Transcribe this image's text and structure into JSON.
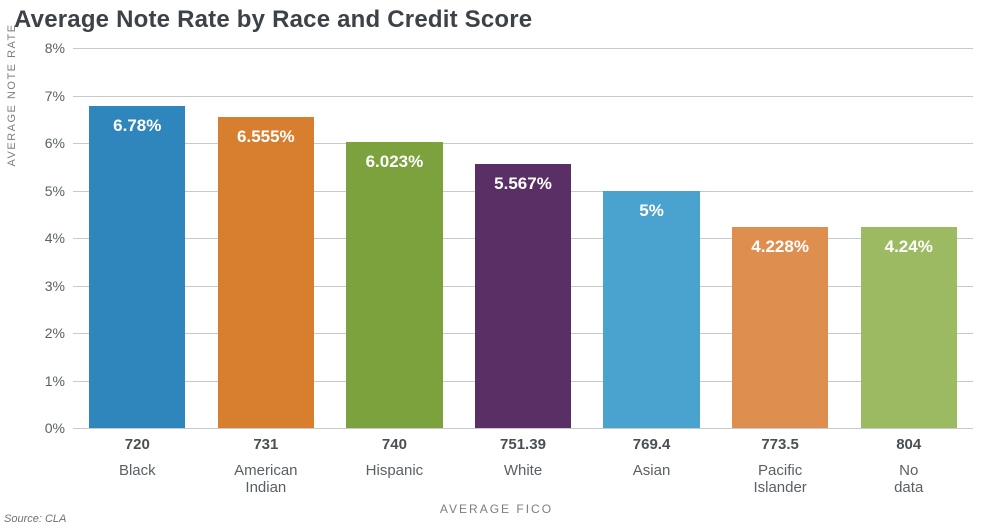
{
  "title": "Average Note Rate by Race and Credit Score",
  "y_axis": {
    "title": "AVERAGE NOTE RATE",
    "min": 0,
    "max": 8,
    "tick_step": 1,
    "tick_suffix": "%",
    "tick_fontsize": 14,
    "title_fontsize": 11,
    "grid_color": "#c7cacc"
  },
  "x_axis": {
    "title": "AVERAGE FICO",
    "title_fontsize": 12,
    "fico_fontsize": 15,
    "race_fontsize": 15
  },
  "plot": {
    "background_color": "#ffffff",
    "bar_width_ratio": 0.75,
    "value_label_color": "#ffffff",
    "value_label_fontsize": 17
  },
  "bars": [
    {
      "race": "Black",
      "fico": "720",
      "value": 6.78,
      "label": "6.78%",
      "color": "#2e86bc"
    },
    {
      "race": "American Indian",
      "fico": "731",
      "value": 6.555,
      "label": "6.555%",
      "color": "#d77f2f"
    },
    {
      "race": "Hispanic",
      "fico": "740",
      "value": 6.023,
      "label": "6.023%",
      "color": "#7ba23c"
    },
    {
      "race": "White",
      "fico": "751.39",
      "value": 5.567,
      "label": "5.567%",
      "color": "#5a2f66"
    },
    {
      "race": "Asian",
      "fico": "769.4",
      "value": 5.0,
      "label": "5%",
      "color": "#4aa3cf"
    },
    {
      "race": "Pacific Islander",
      "fico": "773.5",
      "value": 4.228,
      "label": "4.228%",
      "color": "#de8e4f"
    },
    {
      "race": "No data",
      "fico": "804",
      "value": 4.24,
      "label": "4.24%",
      "color": "#9cba61"
    }
  ],
  "source": "Source: CLA",
  "title_fontsize": 24,
  "title_color": "#3d4248",
  "text_color": "#5a6066"
}
